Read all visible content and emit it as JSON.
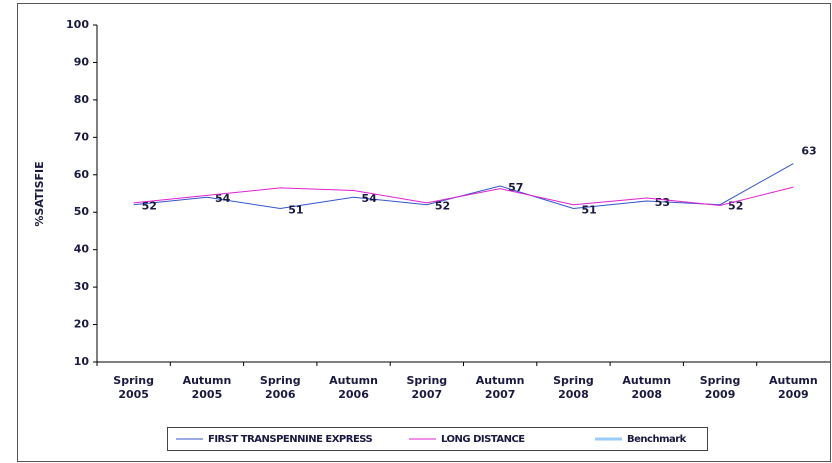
{
  "chart_data": {
    "type": "line",
    "y_label": "%SATISFIE",
    "categories": [
      "Spring 2005",
      "Autumn 2005",
      "Spring 2006",
      "Autumn 2006",
      "Spring 2007",
      "Autumn 2007",
      "Spring 2008",
      "Autumn 2008",
      "Spring 2009",
      "Autumn 2009"
    ],
    "series": [
      {
        "name": "FIRST TRANSPENNINE EXPRESS",
        "color": "#3355cc",
        "values": [
          52,
          54,
          51,
          54,
          52,
          57,
          51,
          53,
          52,
          63
        ],
        "labels": true
      },
      {
        "name": "LONG DISTANCE",
        "color": "#e020d0",
        "values": [
          52.5,
          54.5,
          56.5,
          55.8,
          52.5,
          56.3,
          52,
          53.8,
          51.8,
          56.7
        ],
        "labels": false
      },
      {
        "name": "Benchmark",
        "color": "#99ccff",
        "values": [
          null,
          null,
          null,
          null,
          null,
          null,
          null,
          null,
          null,
          null
        ],
        "labels": false
      }
    ],
    "ylim": [
      10,
      100
    ],
    "yticks": [
      10,
      20,
      30,
      40,
      50,
      60,
      70,
      80,
      90,
      100
    ],
    "grid": false
  }
}
